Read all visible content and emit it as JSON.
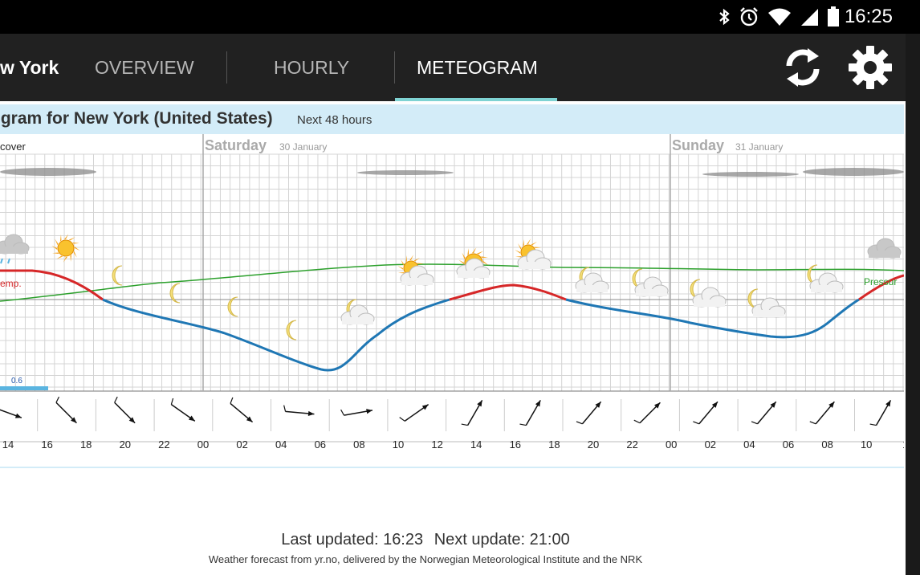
{
  "status_bar": {
    "time": "16:25",
    "icons": [
      "bluetooth-icon",
      "alarm-icon",
      "wifi-icon",
      "cell-signal-icon",
      "battery-icon"
    ]
  },
  "app_bar": {
    "location": "w York",
    "tabs": [
      {
        "label": "OVERVIEW",
        "selected": false
      },
      {
        "label": "HOURLY",
        "selected": false
      },
      {
        "label": "METEOGRAM",
        "selected": true
      }
    ],
    "actions": [
      "refresh-icon",
      "settings-icon"
    ]
  },
  "meteogram": {
    "title": "ogram for New York (United States)",
    "subtitle": "Next 48 hours",
    "cloud_label": "cover",
    "temp_label": "emp.",
    "pressure_label": "Pressur",
    "precip_label": "0.6",
    "days": [
      {
        "name": "Saturday",
        "date": "30 January"
      },
      {
        "name": "Sunday",
        "date": "31 January"
      }
    ],
    "hours": [
      "14",
      "16",
      "18",
      "20",
      "22",
      "00",
      "02",
      "04",
      "06",
      "08",
      "10",
      "12",
      "14",
      "16",
      "18",
      "20",
      "22",
      "00",
      "02",
      "04",
      "06",
      "08",
      "10",
      "1"
    ],
    "colors": {
      "warm": "#d62728",
      "cold": "#1f77b4",
      "pressure": "#2ca02c",
      "grid": "#c8c8c8",
      "header": "#d3ecf8",
      "precip": "#5ab4e0"
    },
    "weather_icons": [
      "cloud-rain-icon",
      "sun-icon",
      "moon-icon",
      "moon-icon",
      "moon-icon",
      "moon-icon",
      "moon-cloud-icon",
      "sun-cloud-icon",
      "sun-cloud-icon",
      "sun-cloud-icon",
      "moon-cloud-icon",
      "moon-cloud-icon",
      "moon-cloud-icon",
      "moon-cloud-icon",
      "moon-cloud-icon",
      "cloud-icon"
    ]
  },
  "footer": {
    "last_updated": "Last updated: 16:23",
    "next_update": "Next update: 21:00",
    "source": "Weather forecast from yr.no, delivered by the Norwegian Meteorological Institute and the NRK"
  }
}
